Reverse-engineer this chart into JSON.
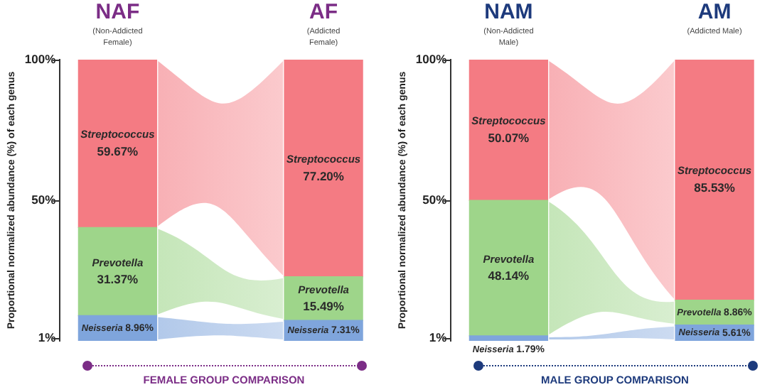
{
  "chart_data": [
    {
      "type": "bar",
      "stacked": true,
      "categories": [
        "NAF",
        "AF"
      ],
      "xlabel": "FEMALE GROUP COMPARISON",
      "ylabel": "Proportional normalized abundance (%) of each genus",
      "annotations": [
        "(Non-Addicted Female)",
        "(Addicted Female)"
      ],
      "series": [
        {
          "name": "Neisseria",
          "color": "#7fa5dc",
          "values": [
            8.96,
            7.31
          ],
          "value_labels": [
            "8.96%",
            "7.31%"
          ]
        },
        {
          "name": "Prevotella",
          "color": "#9ed58a",
          "values": [
            31.37,
            15.49
          ],
          "value_labels": [
            "31.37%",
            "15.49%"
          ]
        },
        {
          "name": "Streptococcus",
          "color": "#f47b83",
          "values": [
            59.67,
            77.2
          ],
          "value_labels": [
            "59.67%",
            "77.20%"
          ]
        }
      ],
      "ylim": [
        0,
        100
      ],
      "yticks": [
        {
          "value": 1,
          "label": "1%"
        },
        {
          "value": 50,
          "label": "50%"
        },
        {
          "value": 100,
          "label": "100%"
        }
      ],
      "grid": false,
      "legend": false
    },
    {
      "type": "bar",
      "stacked": true,
      "categories": [
        "NAM",
        "AM"
      ],
      "xlabel": "MALE GROUP COMPARISON",
      "ylabel": "Proportional normalized abundance (%) of each genus",
      "annotations": [
        "(Non-Addicted Male)",
        "(Addicted Male)"
      ],
      "series": [
        {
          "name": "Neisseria",
          "color": "#7fa5dc",
          "values": [
            1.79,
            5.61
          ],
          "value_labels": [
            "1.79%",
            "5.61%"
          ]
        },
        {
          "name": "Prevotella",
          "color": "#9ed58a",
          "values": [
            48.14,
            8.86
          ],
          "value_labels": [
            "48.14%",
            "8.86%"
          ]
        },
        {
          "name": "Streptococcus",
          "color": "#f47b83",
          "values": [
            50.07,
            85.53
          ],
          "value_labels": [
            "50.07%",
            "85.53%"
          ]
        }
      ],
      "ylim": [
        0,
        100
      ],
      "yticks": [
        {
          "value": 1,
          "label": "1%"
        },
        {
          "value": 50,
          "label": "50%"
        },
        {
          "value": 100,
          "label": "100%"
        }
      ],
      "grid": false,
      "legend": false
    }
  ]
}
